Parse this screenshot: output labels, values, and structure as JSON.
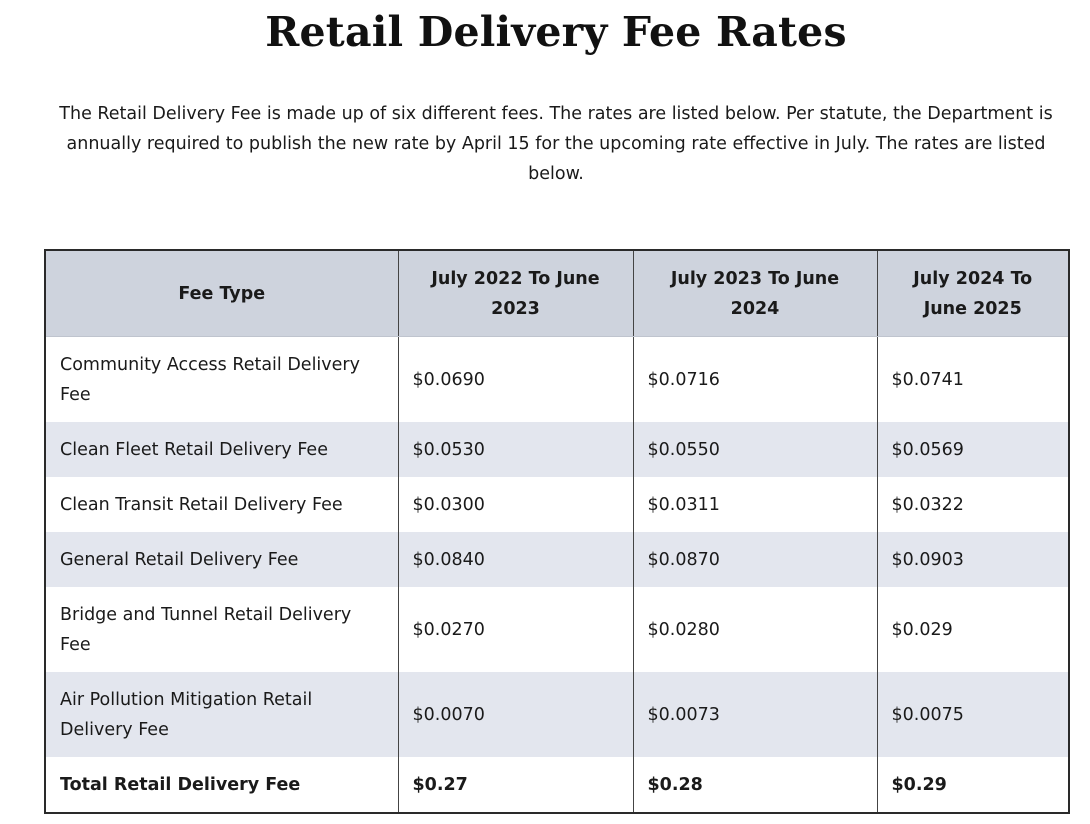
{
  "page": {
    "title": "Retail Delivery Fee Rates",
    "intro": "The Retail Delivery Fee is made up of six different fees. The rates are listed below. Per statute, the Department is annually required to publish the new rate by April 15 for the upcoming rate effective in July. The rates are listed below."
  },
  "table": {
    "headers": [
      "Fee Type",
      "July 2022 To June 2023",
      "July 2023 To June 2024",
      "July 2024 To June 2025"
    ],
    "rows": [
      [
        "Community Access Retail Delivery Fee",
        "$0.0690",
        "$0.0716",
        "$0.0741"
      ],
      [
        "Clean Fleet Retail Delivery Fee",
        "$0.0530",
        "$0.0550",
        "$0.0569"
      ],
      [
        "Clean Transit Retail Delivery Fee",
        "$0.0300",
        "$0.0311",
        "$0.0322"
      ],
      [
        "General Retail Delivery Fee",
        "$0.0840",
        "$0.0870",
        "$0.0903"
      ],
      [
        "Bridge and Tunnel Retail Delivery Fee",
        "$0.0270",
        "$0.0280",
        "$0.029"
      ],
      [
        "Air Pollution Mitigation Retail Delivery Fee",
        "$0.0070",
        "$0.0073",
        "$0.0075"
      ]
    ],
    "total": [
      "Total Retail Delivery Fee",
      "$0.27",
      "$0.28",
      "$0.29"
    ]
  },
  "colors": {
    "header_bg": "#ced3dd",
    "row_shade": "#e3e6ee",
    "row_white": "#ffffff",
    "border": "#2a2a2a",
    "text": "#1a1a1a"
  }
}
